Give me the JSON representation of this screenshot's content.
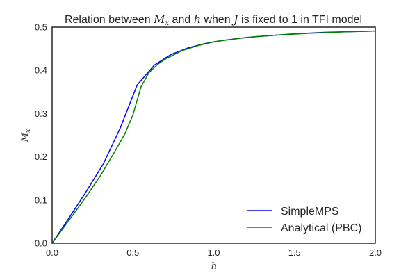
{
  "chart_data": {
    "type": "line",
    "title_parts": [
      "Relation between ",
      "M",
      "x",
      " and ",
      "h",
      " when ",
      "J",
      " is fixed to 1 in TFI model"
    ],
    "xlabel": "h",
    "ylabel": "M",
    "ylabel_sub": "x",
    "xlim": [
      0.0,
      2.0
    ],
    "ylim": [
      0.0,
      0.5
    ],
    "xticks": [
      0.0,
      0.5,
      1.0,
      1.5,
      2.0
    ],
    "xtick_labels": [
      "0.0",
      "0.5",
      "1.0",
      "1.5",
      "2.0"
    ],
    "yticks": [
      0.0,
      0.1,
      0.2,
      0.3,
      0.4,
      0.5
    ],
    "ytick_labels": [
      "0.0",
      "0.1",
      "0.2",
      "0.3",
      "0.4",
      "0.5"
    ],
    "grid": false,
    "legend_position": "lower-right",
    "series": [
      {
        "name": "SimpleMPS",
        "color": "#0000ff",
        "x": [
          0.0,
          0.1,
          0.2,
          0.316,
          0.421,
          0.526,
          0.632,
          0.737,
          0.842,
          0.947,
          1.053,
          1.158,
          1.263,
          1.368,
          1.474,
          1.579,
          1.684,
          1.789,
          1.895,
          2.0
        ],
        "y": [
          0.0,
          0.056,
          0.113,
          0.183,
          0.266,
          0.366,
          0.412,
          0.437,
          0.452,
          0.462,
          0.469,
          0.474,
          0.478,
          0.481,
          0.484,
          0.486,
          0.488,
          0.489,
          0.49,
          0.491
        ]
      },
      {
        "name": "Analytical (PBC)",
        "color": "#008000",
        "x": [
          0.0,
          0.1,
          0.2,
          0.3,
          0.4,
          0.45,
          0.5,
          0.55,
          0.6,
          0.65,
          0.7,
          0.8,
          0.9,
          1.0,
          1.2,
          1.4,
          1.6,
          1.8,
          2.0
        ],
        "y": [
          0.0,
          0.051,
          0.102,
          0.157,
          0.22,
          0.253,
          0.297,
          0.362,
          0.395,
          0.413,
          0.426,
          0.445,
          0.457,
          0.466,
          0.476,
          0.482,
          0.486,
          0.489,
          0.491
        ]
      }
    ]
  }
}
